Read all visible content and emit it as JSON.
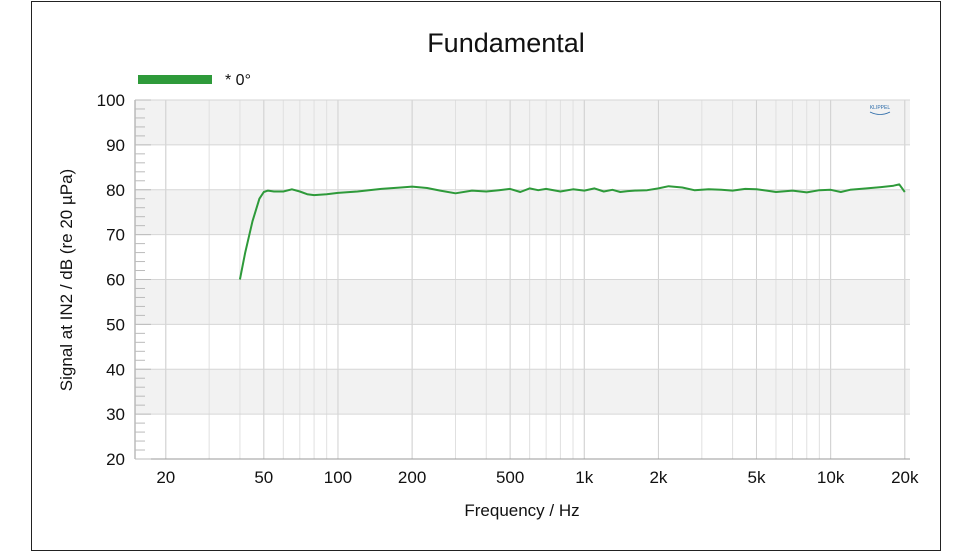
{
  "chart_data": {
    "type": "line",
    "title": "Fundamental",
    "xlabel": "Frequency / Hz",
    "ylabel": "Signal at IN2 / dB (re 20 µPa)",
    "xscale": "log",
    "xlim": [
      15,
      21000
    ],
    "ylim": [
      20,
      100
    ],
    "x_ticks": [
      20,
      50,
      100,
      200,
      500,
      1000,
      2000,
      5000,
      10000,
      20000
    ],
    "x_tick_labels": [
      "20",
      "50",
      "100",
      "200",
      "500",
      "1k",
      "2k",
      "5k",
      "10k",
      "20k"
    ],
    "y_ticks": [
      20,
      30,
      40,
      50,
      60,
      70,
      80,
      90,
      100
    ],
    "y_tick_labels": [
      "20",
      "30",
      "40",
      "50",
      "60",
      "70",
      "80",
      "90",
      "100"
    ],
    "grid": true,
    "legend_position": "top-left",
    "series": [
      {
        "name": "* 0°",
        "color": "#2e9a3a",
        "x": [
          40,
          42,
          45,
          48,
          50,
          52,
          55,
          60,
          65,
          70,
          75,
          80,
          90,
          100,
          120,
          150,
          180,
          200,
          230,
          260,
          300,
          350,
          400,
          450,
          500,
          550,
          600,
          650,
          700,
          800,
          900,
          1000,
          1100,
          1200,
          1300,
          1400,
          1500,
          1600,
          1800,
          2000,
          2200,
          2500,
          2800,
          3200,
          3600,
          4000,
          4500,
          5000,
          5500,
          6000,
          7000,
          8000,
          9000,
          10000,
          11000,
          12000,
          14000,
          16000,
          18000,
          19000,
          20000
        ],
        "y": [
          60,
          66,
          73,
          78,
          79.5,
          79.8,
          79.6,
          79.6,
          80.1,
          79.6,
          79.0,
          78.8,
          79.0,
          79.3,
          79.6,
          80.2,
          80.5,
          80.7,
          80.4,
          79.8,
          79.2,
          79.8,
          79.6,
          79.9,
          80.2,
          79.5,
          80.3,
          79.9,
          80.2,
          79.6,
          80.1,
          79.8,
          80.3,
          79.6,
          80.0,
          79.5,
          79.7,
          79.8,
          79.9,
          80.3,
          80.8,
          80.5,
          79.9,
          80.1,
          80.0,
          79.8,
          80.2,
          80.1,
          79.8,
          79.5,
          79.8,
          79.4,
          79.9,
          80.0,
          79.5,
          80.0,
          80.3,
          80.6,
          80.9,
          81.2,
          79.5
        ]
      }
    ],
    "logo_text": "KLIPPEL"
  }
}
